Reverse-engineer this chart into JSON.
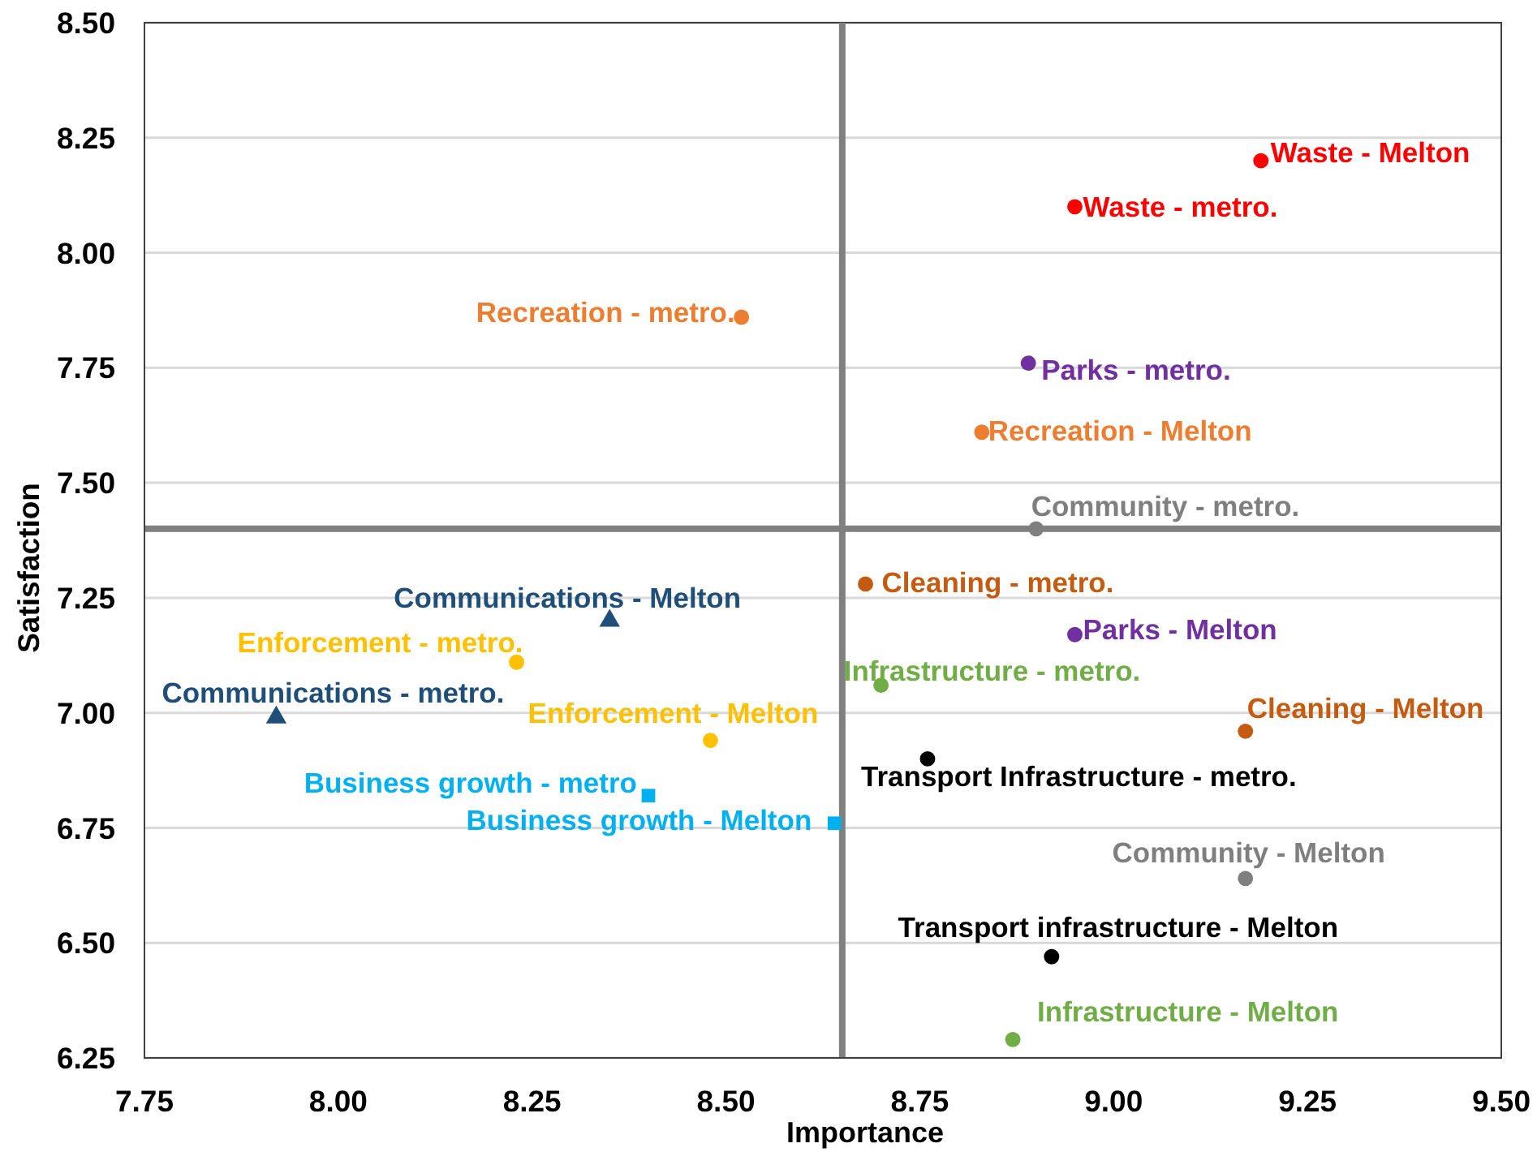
{
  "chart_data": {
    "type": "scatter",
    "xlabel": "Importance",
    "ylabel": "Satisfaction",
    "xlim": [
      7.75,
      9.5
    ],
    "ylim": [
      6.25,
      8.5
    ],
    "xticks": [
      7.75,
      {
        "value": 8,
        "label": "8.00"
      },
      8.25,
      {
        "value": 8.5,
        "label": "8.50"
      },
      8.75,
      {
        "value": 9,
        "label": "9.00"
      },
      9.25,
      {
        "value": 9.5,
        "label": "9.50"
      }
    ],
    "yticks": [
      6.25,
      {
        "value": 6.5,
        "label": "6.50"
      },
      6.75,
      {
        "value": 7,
        "label": "7.00"
      },
      7.25,
      {
        "value": 7.5,
        "label": "7.50"
      },
      7.75,
      {
        "value": 8,
        "label": "8.00"
      },
      8.25,
      {
        "value": 8.5,
        "label": "8.50"
      }
    ],
    "grid": "y",
    "marker": "circle",
    "ref_lines": [
      {
        "axis": "x",
        "value": 8.65,
        "color": "#808080"
      },
      {
        "axis": "y",
        "value": 7.4,
        "color": "#808080"
      }
    ],
    "series": [
      {
        "name": "Waste - Melton",
        "color": "#ff0000",
        "x": [
          9.19
        ],
        "values": [
          8.2
        ]
      },
      {
        "name": "Waste - metro.",
        "color": "#ff0000",
        "x": [
          8.95
        ],
        "values": [
          8.1
        ]
      },
      {
        "name": "Recreation - metro.",
        "color": "#ed7d31",
        "x": [
          8.52
        ],
        "values": [
          7.86
        ]
      },
      {
        "name": "Parks - metro.",
        "color": "#7030a0",
        "x": [
          8.89
        ],
        "values": [
          7.76
        ]
      },
      {
        "name": "Recreation - Melton",
        "color": "#ed7d31",
        "x": [
          8.83
        ],
        "values": [
          7.61
        ]
      },
      {
        "name": "Community - metro.",
        "color": "#7f7f7f",
        "x": [
          8.9
        ],
        "values": [
          7.4
        ]
      },
      {
        "name": "Cleaning - metro.",
        "color": "#c55a11",
        "x": [
          8.68
        ],
        "values": [
          7.28
        ]
      },
      {
        "name": "Parks - Melton",
        "color": "#7030a0",
        "x": [
          8.95
        ],
        "values": [
          7.17
        ]
      },
      {
        "name": "Infrastructure - metro.",
        "color": "#70ad47",
        "x": [
          8.7
        ],
        "values": [
          7.06
        ]
      },
      {
        "name": "Cleaning - Melton",
        "color": "#c55a11",
        "x": [
          9.17
        ],
        "values": [
          6.96
        ]
      },
      {
        "name": "Transport Infrastructure - metro.",
        "color": "#000000",
        "x": [
          8.76
        ],
        "values": [
          6.9
        ]
      },
      {
        "name": "Business growth - Melton",
        "color": "#00b0f0",
        "x": [
          8.64
        ],
        "values": [
          6.76
        ],
        "marker": "square"
      },
      {
        "name": "Community - Melton",
        "color": "#7f7f7f",
        "x": [
          9.17
        ],
        "values": [
          6.64
        ]
      },
      {
        "name": "Transport infrastructure - Melton",
        "color": "#000000",
        "x": [
          8.92
        ],
        "values": [
          6.47
        ]
      },
      {
        "name": "Infrastructure - Melton",
        "color": "#70ad47",
        "x": [
          8.87
        ],
        "values": [
          6.29
        ]
      },
      {
        "name": "Communications - Melton",
        "color": "#1f4e79",
        "x": [
          8.35
        ],
        "values": [
          7.2
        ],
        "marker": "triangle"
      },
      {
        "name": "Enforcement - metro.",
        "color": "#ffc000",
        "x": [
          8.23
        ],
        "values": [
          7.11
        ]
      },
      {
        "name": "Communications - metro.",
        "color": "#1f4e79",
        "x": [
          7.92
        ],
        "values": [
          6.99
        ],
        "marker": "triangle"
      },
      {
        "name": "Enforcement - Melton",
        "color": "#ffc000",
        "x": [
          8.48
        ],
        "values": [
          6.94
        ]
      },
      {
        "name": "Business growth - metro",
        "color": "#00b0f0",
        "x": [
          8.4
        ],
        "values": [
          6.82
        ],
        "marker": "square"
      }
    ]
  }
}
